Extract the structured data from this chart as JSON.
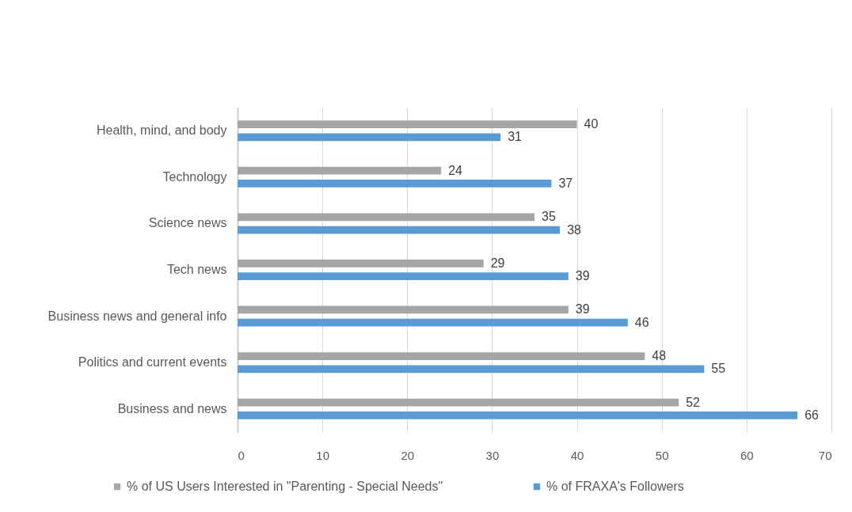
{
  "chart_data": {
    "type": "bar",
    "orientation": "horizontal",
    "categories": [
      "Health, mind, and body",
      "Technology",
      "Science news",
      "Tech news",
      "Business news and general info",
      "Politics and current events",
      "Business and news"
    ],
    "series": [
      {
        "name": "% of US Users Interested in \"Parenting - Special Needs\"",
        "color": "#a5a5a5",
        "values": [
          40,
          24,
          35,
          29,
          39,
          48,
          52
        ]
      },
      {
        "name": "% of FRAXA's Followers",
        "color": "#5b9bd5",
        "values": [
          31,
          37,
          38,
          39,
          46,
          55,
          66
        ]
      }
    ],
    "xlim": [
      0,
      70
    ],
    "xticks": [
      0,
      10,
      20,
      30,
      40,
      50,
      60,
      70
    ],
    "grid": "x",
    "legend": "bottom",
    "data_labels": true
  }
}
